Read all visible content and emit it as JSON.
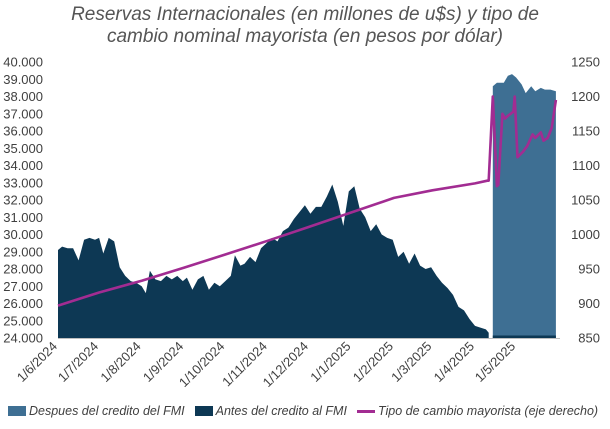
{
  "title_line1": "Reservas Internacionales (en millones de u$s) y tipo de",
  "title_line2": "cambio nominal mayorista (en pesos por dólar)",
  "colors": {
    "before": "#0d3854",
    "after": "#3e6f93",
    "fx": "#a22c92"
  },
  "chart_data": {
    "type": "area",
    "title": "Reservas Internacionales (en millones de u$s) y tipo de cambio nominal mayorista (en pesos por dólar)",
    "x_tick_labels": [
      "1/6/2024",
      "1/7/2024",
      "1/8/2024",
      "1/9/2024",
      "1/10/2024",
      "1/11/2024",
      "1/12/2024",
      "1/1/2025",
      "1/2/2025",
      "1/3/2025",
      "1/4/2025",
      "1/5/2025"
    ],
    "y_left_tick_labels": [
      "24.000",
      "25.000",
      "26.000",
      "27.000",
      "28.000",
      "29.000",
      "30.000",
      "31.000",
      "32.000",
      "33.000",
      "34.000",
      "35.000",
      "36.000",
      "37.000",
      "38.000",
      "39.000",
      "40.000"
    ],
    "y_right_tick_labels": [
      "850",
      "900",
      "950",
      "1000",
      "1050",
      "1100",
      "1150",
      "1200",
      "1250"
    ],
    "ylim_left": [
      24000,
      40000
    ],
    "ylim_right": [
      850,
      1250
    ],
    "legend_position": "bottom",
    "series": [
      {
        "name": "Despues del credito del FMI",
        "axis": "left",
        "points": [
          [
            "2025-04-14",
            38600
          ],
          [
            "2025-04-17",
            38800
          ],
          [
            "2025-04-22",
            38800
          ],
          [
            "2025-04-25",
            39200
          ],
          [
            "2025-04-28",
            39300
          ],
          [
            "2025-05-01",
            39100
          ],
          [
            "2025-05-05",
            38700
          ],
          [
            "2025-05-08",
            38200
          ],
          [
            "2025-05-12",
            38600
          ],
          [
            "2025-05-15",
            38300
          ],
          [
            "2025-05-19",
            38500
          ],
          [
            "2025-05-22",
            38400
          ],
          [
            "2025-05-26",
            38400
          ],
          [
            "2025-05-30",
            38300
          ]
        ]
      },
      {
        "name": "Antes del credito al FMI",
        "axis": "left",
        "points": [
          [
            "2024-06-01",
            29100
          ],
          [
            "2024-06-04",
            29300
          ],
          [
            "2024-06-08",
            29200
          ],
          [
            "2024-06-12",
            29200
          ],
          [
            "2024-06-16",
            28500
          ],
          [
            "2024-06-20",
            29700
          ],
          [
            "2024-06-24",
            29800
          ],
          [
            "2024-06-28",
            29700
          ],
          [
            "2024-07-01",
            29800
          ],
          [
            "2024-07-04",
            28900
          ],
          [
            "2024-07-08",
            29800
          ],
          [
            "2024-07-12",
            29600
          ],
          [
            "2024-07-16",
            28100
          ],
          [
            "2024-07-20",
            27600
          ],
          [
            "2024-07-24",
            27300
          ],
          [
            "2024-07-28",
            27200
          ],
          [
            "2024-08-01",
            27000
          ],
          [
            "2024-08-04",
            26600
          ],
          [
            "2024-08-07",
            27900
          ],
          [
            "2024-08-11",
            27400
          ],
          [
            "2024-08-15",
            27300
          ],
          [
            "2024-08-19",
            27600
          ],
          [
            "2024-08-23",
            27400
          ],
          [
            "2024-08-27",
            27600
          ],
          [
            "2024-08-31",
            27300
          ],
          [
            "2024-09-03",
            27500
          ],
          [
            "2024-09-07",
            26800
          ],
          [
            "2024-09-11",
            27400
          ],
          [
            "2024-09-15",
            27600
          ],
          [
            "2024-09-19",
            26800
          ],
          [
            "2024-09-23",
            27200
          ],
          [
            "2024-09-27",
            27000
          ],
          [
            "2024-10-01",
            27300
          ],
          [
            "2024-10-05",
            27600
          ],
          [
            "2024-10-08",
            28800
          ],
          [
            "2024-10-12",
            28200
          ],
          [
            "2024-10-15",
            28300
          ],
          [
            "2024-10-19",
            28700
          ],
          [
            "2024-10-23",
            28400
          ],
          [
            "2024-10-27",
            29200
          ],
          [
            "2024-10-31",
            29500
          ],
          [
            "2024-11-04",
            29800
          ],
          [
            "2024-11-08",
            29600
          ],
          [
            "2024-11-12",
            30200
          ],
          [
            "2024-11-16",
            30400
          ],
          [
            "2024-11-20",
            30900
          ],
          [
            "2024-11-24",
            31300
          ],
          [
            "2024-11-28",
            31700
          ],
          [
            "2024-12-02",
            31200
          ],
          [
            "2024-12-06",
            31600
          ],
          [
            "2024-12-10",
            31600
          ],
          [
            "2024-12-14",
            32200
          ],
          [
            "2024-12-18",
            32900
          ],
          [
            "2024-12-22",
            31900
          ],
          [
            "2024-12-26",
            30500
          ],
          [
            "2024-12-30",
            32500
          ],
          [
            "2025-01-03",
            32800
          ],
          [
            "2025-01-07",
            31500
          ],
          [
            "2025-01-11",
            31000
          ],
          [
            "2025-01-15",
            30200
          ],
          [
            "2025-01-19",
            30600
          ],
          [
            "2025-01-23",
            30000
          ],
          [
            "2025-01-27",
            29800
          ],
          [
            "2025-01-31",
            29700
          ],
          [
            "2025-02-04",
            28700
          ],
          [
            "2025-02-08",
            29000
          ],
          [
            "2025-02-12",
            28300
          ],
          [
            "2025-02-16",
            28900
          ],
          [
            "2025-02-20",
            28200
          ],
          [
            "2025-02-24",
            28000
          ],
          [
            "2025-02-28",
            28100
          ],
          [
            "2025-03-04",
            27600
          ],
          [
            "2025-03-08",
            27200
          ],
          [
            "2025-03-12",
            26900
          ],
          [
            "2025-03-16",
            26500
          ],
          [
            "2025-03-20",
            25800
          ],
          [
            "2025-03-24",
            25600
          ],
          [
            "2025-03-28",
            25100
          ],
          [
            "2025-04-01",
            24700
          ],
          [
            "2025-04-05",
            24600
          ],
          [
            "2025-04-09",
            24500
          ],
          [
            "2025-04-11",
            24300
          ]
        ]
      },
      {
        "name": "Tipo de cambio mayorista (eje derecho)",
        "axis": "right",
        "points": [
          [
            "2024-06-01",
            897
          ],
          [
            "2024-07-01",
            916
          ],
          [
            "2024-08-01",
            933
          ],
          [
            "2024-09-01",
            952
          ],
          [
            "2024-10-01",
            971
          ],
          [
            "2024-11-01",
            991
          ],
          [
            "2024-12-01",
            1011
          ],
          [
            "2025-01-01",
            1032
          ],
          [
            "2025-02-01",
            1053
          ],
          [
            "2025-03-01",
            1064
          ],
          [
            "2025-04-01",
            1074
          ],
          [
            "2025-04-10",
            1078
          ],
          [
            "2025-04-11",
            1078
          ],
          [
            "2025-04-14",
            1200
          ],
          [
            "2025-04-17",
            1070
          ],
          [
            "2025-04-18",
            1072
          ],
          [
            "2025-04-21",
            1175
          ],
          [
            "2025-04-23",
            1168
          ],
          [
            "2025-04-25",
            1172
          ],
          [
            "2025-04-29",
            1178
          ],
          [
            "2025-04-30",
            1200
          ],
          [
            "2025-05-02",
            1112
          ],
          [
            "2025-05-06",
            1120
          ],
          [
            "2025-05-09",
            1128
          ],
          [
            "2025-05-13",
            1145
          ],
          [
            "2025-05-15",
            1140
          ],
          [
            "2025-05-19",
            1148
          ],
          [
            "2025-05-21",
            1136
          ],
          [
            "2025-05-24",
            1140
          ],
          [
            "2025-05-27",
            1155
          ],
          [
            "2025-05-30",
            1195
          ]
        ]
      }
    ]
  },
  "legend": {
    "after_label": "Despues del credito del FMI",
    "before_label": "Antes del credito al FMI",
    "fx_label": "Tipo de cambio mayorista (eje derecho)"
  }
}
